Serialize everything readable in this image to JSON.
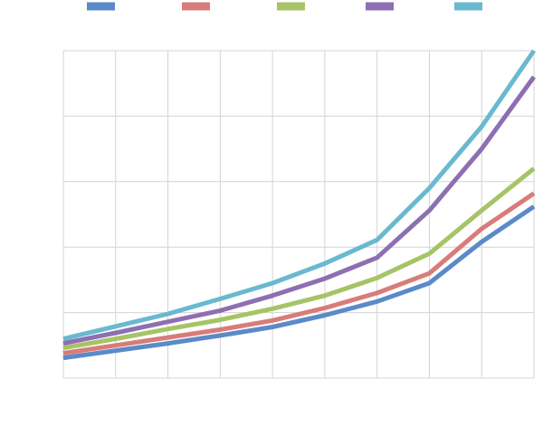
{
  "chart_data": {
    "type": "line",
    "title": "",
    "xlabel": "",
    "ylabel": "",
    "x": [
      1,
      2,
      3,
      4,
      5,
      6,
      7,
      8,
      9,
      10
    ],
    "xlim": [
      1,
      10
    ],
    "ylim": [
      0,
      5
    ],
    "grid": true,
    "legend": "top",
    "series": [
      {
        "color": "#5b8ac8",
        "values": [
          0.31,
          0.42,
          0.53,
          0.65,
          0.78,
          0.96,
          1.17,
          1.45,
          2.08,
          2.62
        ]
      },
      {
        "color": "#d87c7a",
        "values": [
          0.38,
          0.5,
          0.62,
          0.74,
          0.88,
          1.07,
          1.3,
          1.6,
          2.28,
          2.82
        ]
      },
      {
        "color": "#a6c466",
        "values": [
          0.46,
          0.6,
          0.75,
          0.89,
          1.06,
          1.26,
          1.53,
          1.9,
          2.56,
          3.2
        ]
      },
      {
        "color": "#8e6fb2",
        "values": [
          0.53,
          0.69,
          0.86,
          1.03,
          1.26,
          1.52,
          1.84,
          2.56,
          3.5,
          4.6
        ]
      },
      {
        "color": "#69b9d0",
        "values": [
          0.6,
          0.79,
          0.98,
          1.21,
          1.45,
          1.75,
          2.11,
          2.9,
          3.84,
          5.0
        ]
      }
    ]
  }
}
